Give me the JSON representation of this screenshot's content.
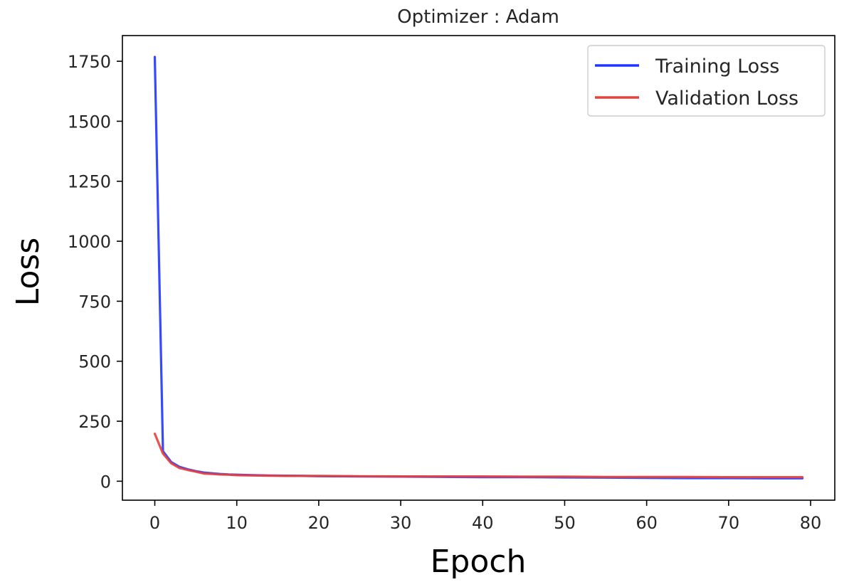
{
  "chart_data": {
    "type": "line",
    "title": "Optimizer : Adam",
    "xlabel": "Epoch",
    "ylabel": "Loss",
    "xlim": [
      -3.95,
      82.95
    ],
    "ylim": [
      -79,
      1857
    ],
    "xticks": [
      0,
      10,
      20,
      30,
      40,
      50,
      60,
      70,
      80
    ],
    "yticks": [
      0,
      250,
      500,
      750,
      1000,
      1250,
      1500,
      1750
    ],
    "grid": false,
    "legend_position": "upper right",
    "x": [
      0,
      1,
      2,
      3,
      4,
      5,
      6,
      7,
      8,
      9,
      10,
      12,
      14,
      16,
      18,
      20,
      25,
      30,
      35,
      40,
      45,
      50,
      55,
      60,
      65,
      70,
      75,
      79
    ],
    "series": [
      {
        "name": "Training Loss",
        "color": "#1f35ff",
        "values": [
          1768,
          125,
          80,
          60,
          50,
          42,
          36,
          33,
          30,
          28,
          27,
          25,
          24,
          23,
          22,
          21,
          20,
          19,
          18,
          17,
          17,
          16,
          15,
          14,
          13,
          13,
          12,
          12
        ]
      },
      {
        "name": "Validation Loss",
        "color": "#e8403a",
        "values": [
          198,
          115,
          75,
          55,
          47,
          40,
          32,
          30,
          28,
          27,
          25,
          24,
          23,
          22,
          22,
          22,
          21,
          20,
          20,
          20,
          19,
          19,
          18,
          18,
          18,
          17,
          17,
          17
        ]
      }
    ]
  }
}
